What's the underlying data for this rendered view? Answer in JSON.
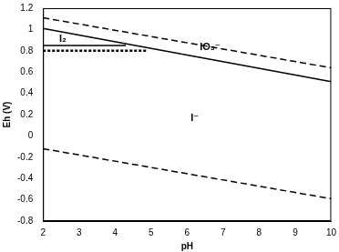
{
  "chart_data": {
    "type": "line",
    "x_label": "pH",
    "y_label": "Eh (V)",
    "xlim": [
      2,
      10
    ],
    "xticks": [
      2,
      3,
      4,
      5,
      6,
      7,
      8,
      9,
      10
    ],
    "ylim": [
      -0.8,
      1.2
    ],
    "yticks": [
      -0.8,
      -0.6,
      -0.4,
      -0.2,
      0,
      0.2,
      0.4,
      0.6,
      0.8,
      1,
      1.2
    ],
    "grid": false,
    "series": [
      {
        "x": [
          2,
          10
        ],
        "values": [
          1.11,
          0.64
        ],
        "color": "#000000",
        "line_style": "dashed"
      },
      {
        "x": [
          2,
          10
        ],
        "values": [
          -0.12,
          -0.59
        ],
        "color": "#000000",
        "line_style": "dashed"
      },
      {
        "x": [
          2,
          10
        ],
        "values": [
          1.01,
          0.51
        ],
        "color": "#000000",
        "line_style": "solid"
      },
      {
        "x": [
          2,
          4.3
        ],
        "values": [
          0.85,
          0.85
        ],
        "color": "#000000",
        "line_style": "solid"
      },
      {
        "x": [
          2,
          4.9
        ],
        "values": [
          0.8,
          0.8
        ],
        "color": "#000000",
        "line_style": "dotted"
      }
    ],
    "annotations": [
      {
        "text": "I₂",
        "x": 2.45,
        "y": 0.91
      },
      {
        "text": "IO₃⁻",
        "x": 6.35,
        "y": 0.83
      },
      {
        "text": "I⁻",
        "x": 6.1,
        "y": 0.17
      }
    ]
  }
}
